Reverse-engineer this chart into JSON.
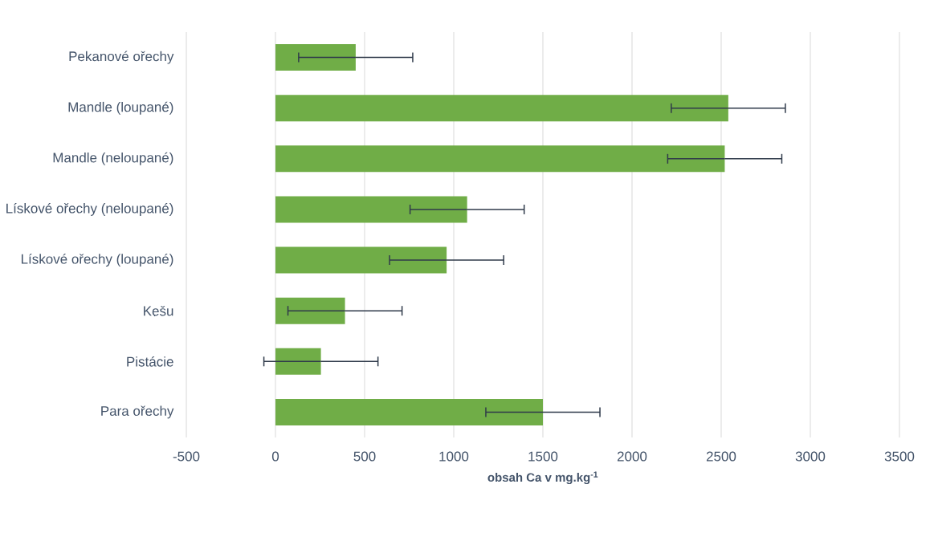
{
  "chart_data": {
    "type": "bar",
    "orientation": "horizontal",
    "xlabel": "obsah Ca v mg.kg$^{-1}$",
    "categories": [
      "Pekanové ořechy",
      "Mandle (loupané)",
      "Mandle (neloupané)",
      "Lískové ořechy (neloupané)",
      "Lískové ořechy (loupané)",
      "Kešu",
      "Pistácie",
      "Para ořechy"
    ],
    "values": [
      450,
      2540,
      2520,
      1075,
      960,
      390,
      255,
      1500
    ],
    "errors": [
      320,
      320,
      320,
      320,
      320,
      320,
      320,
      320
    ],
    "color": "#70ad47",
    "xlim": [
      -500,
      3500
    ],
    "xticks": [
      -500,
      0,
      500,
      1000,
      1500,
      2000,
      2500,
      3000,
      3500
    ],
    "grid": "x"
  }
}
